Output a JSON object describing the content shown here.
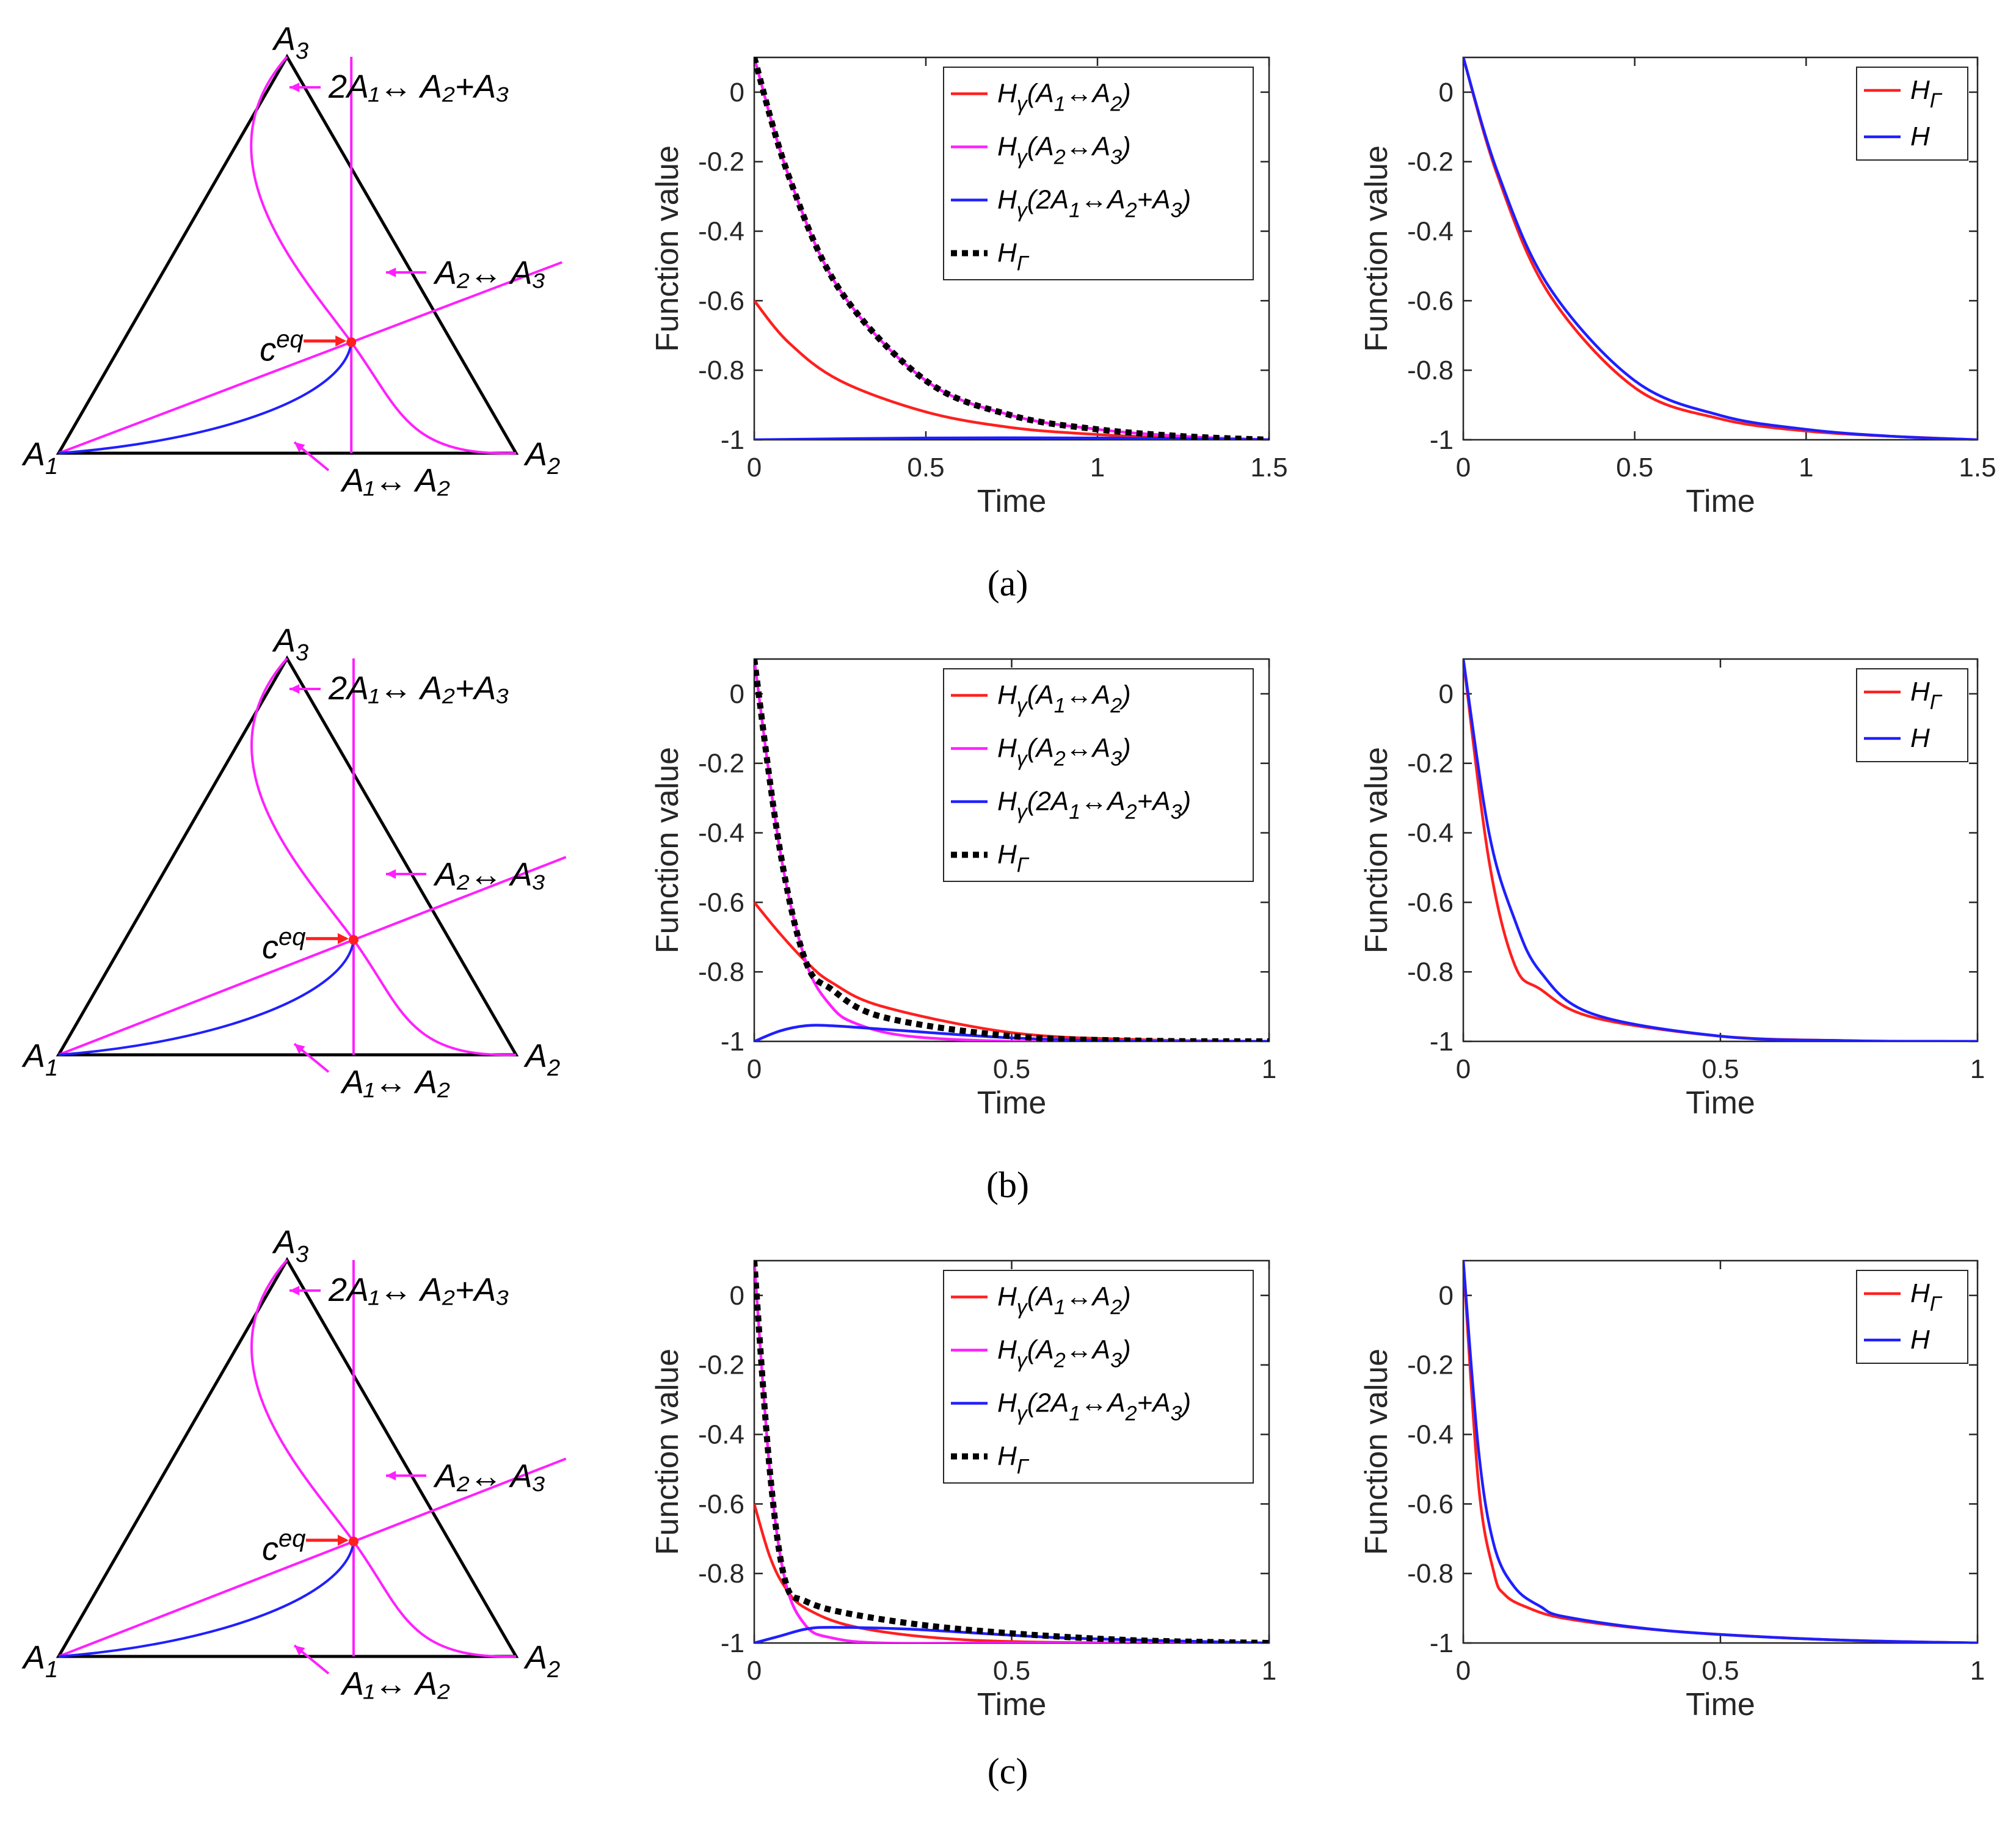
{
  "colors": {
    "red": "#ff1f1f",
    "magenta": "#ff1fff",
    "blue": "#1f1fff",
    "black": "#000000"
  },
  "panels": [
    {
      "caption": "(a)",
      "caption_letter": "a",
      "ceq": [
        0.5,
        0.28
      ]
    },
    {
      "caption": "(b)",
      "caption_letter": "b",
      "ceq": [
        0.5,
        0.29
      ]
    },
    {
      "caption": "(c)",
      "caption_letter": "c",
      "ceq": [
        0.5,
        0.29
      ]
    }
  ],
  "triangle": {
    "vertices": {
      "A1": "A",
      "A1_sub": "1",
      "A2": "A",
      "A2_sub": "2",
      "A3": "A",
      "A3_sub": "3"
    },
    "ceq_label": "c",
    "ceq_sup": "eq",
    "reaction_labels": [
      "2A₁↔ A₂+A₃",
      "A₂↔ A₃",
      "A₁↔ A₂"
    ]
  },
  "chart_data": [
    {
      "type": "line",
      "panel": "a-middle",
      "xlabel": "Time",
      "ylabel": "Function value",
      "xlim": [
        0,
        1.5
      ],
      "ylim": [
        -1,
        0.1
      ],
      "xticks": [
        "0",
        "0.5",
        "1",
        "1.5"
      ],
      "yticks": [
        "0",
        "-0.2",
        "-0.4",
        "-0.6",
        "-0.8",
        "-1"
      ],
      "legend": [
        "Hγ(A1↔A2)",
        "Hγ(A2↔A3)",
        "Hγ(2A1↔A2+A3)",
        "HΓ"
      ],
      "series": [
        {
          "name": "Hγ(A1↔A2)",
          "color": "#ff1f1f",
          "x": [
            0,
            0.1,
            0.25,
            0.5,
            0.75,
            1,
            1.25,
            1.5
          ],
          "y": [
            -0.6,
            -0.72,
            -0.83,
            -0.92,
            -0.965,
            -0.985,
            -0.995,
            -1
          ]
        },
        {
          "name": "Hγ(A2↔A3)",
          "color": "#ff1fff",
          "x": [
            0,
            0.1,
            0.25,
            0.5,
            0.75,
            1,
            1.25,
            1.5
          ],
          "y": [
            0.1,
            -0.24,
            -0.57,
            -0.83,
            -0.93,
            -0.97,
            -0.99,
            -1
          ]
        },
        {
          "name": "Hγ(2A1↔A2+A3)",
          "color": "#1f1fff",
          "x": [
            0,
            0.5,
            1,
            1.5
          ],
          "y": [
            -1,
            -0.995,
            -0.995,
            -1
          ]
        },
        {
          "name": "HΓ",
          "color": "#000000",
          "dashed": true,
          "x": [
            0,
            0.1,
            0.25,
            0.5,
            0.75,
            1,
            1.25,
            1.5
          ],
          "y": [
            0.1,
            -0.24,
            -0.57,
            -0.83,
            -0.93,
            -0.97,
            -0.99,
            -1
          ]
        }
      ]
    },
    {
      "type": "line",
      "panel": "a-right",
      "xlabel": "Time",
      "ylabel": "Function value",
      "xlim": [
        0,
        1.5
      ],
      "ylim": [
        -1,
        0.1
      ],
      "xticks": [
        "0",
        "0.5",
        "1",
        "1.5"
      ],
      "yticks": [
        "0",
        "-0.2",
        "-0.4",
        "-0.6",
        "-0.8",
        "-1"
      ],
      "legend": [
        "HΓ",
        "H"
      ],
      "series": [
        {
          "name": "HΓ",
          "color": "#ff1f1f",
          "x": [
            0,
            0.1,
            0.25,
            0.5,
            0.75,
            1,
            1.25,
            1.5
          ],
          "y": [
            0.1,
            -0.24,
            -0.58,
            -0.85,
            -0.94,
            -0.975,
            -0.99,
            -1
          ]
        },
        {
          "name": "H",
          "color": "#1f1fff",
          "x": [
            0,
            0.1,
            0.25,
            0.5,
            0.75,
            1,
            1.25,
            1.5
          ],
          "y": [
            0.1,
            -0.23,
            -0.56,
            -0.83,
            -0.93,
            -0.97,
            -0.99,
            -1
          ]
        }
      ]
    },
    {
      "type": "line",
      "panel": "b-middle",
      "xlabel": "Time",
      "ylabel": "Function value",
      "xlim": [
        0,
        1
      ],
      "ylim": [
        -1,
        0.1
      ],
      "xticks": [
        "0",
        "0.5",
        "1"
      ],
      "yticks": [
        "0",
        "-0.2",
        "-0.4",
        "-0.6",
        "-0.8",
        "-1"
      ],
      "legend": [
        "Hγ(A1↔A2)",
        "Hγ(A2↔A3)",
        "Hγ(2A1↔A2+A3)",
        "HΓ"
      ],
      "series": [
        {
          "name": "Hγ(A1↔A2)",
          "color": "#ff1f1f",
          "x": [
            0,
            0.05,
            0.1,
            0.15,
            0.25,
            0.5,
            0.75,
            1
          ],
          "y": [
            -0.6,
            -0.69,
            -0.77,
            -0.83,
            -0.9,
            -0.975,
            -0.995,
            -1
          ]
        },
        {
          "name": "Hγ(A2↔A3)",
          "color": "#ff1fff",
          "x": [
            0,
            0.05,
            0.1,
            0.15,
            0.2,
            0.3,
            0.5,
            0.75,
            1
          ],
          "y": [
            0.1,
            -0.45,
            -0.77,
            -0.9,
            -0.95,
            -0.985,
            -1,
            -1,
            -1
          ]
        },
        {
          "name": "Hγ(2A1↔A2+A3)",
          "color": "#1f1fff",
          "x": [
            0,
            0.05,
            0.1,
            0.15,
            0.25,
            0.5,
            0.75,
            1
          ],
          "y": [
            -1,
            -0.97,
            -0.955,
            -0.955,
            -0.965,
            -0.99,
            -1,
            -1
          ]
        },
        {
          "name": "HΓ",
          "color": "#000000",
          "dashed": true,
          "x": [
            0,
            0.05,
            0.1,
            0.15,
            0.25,
            0.5,
            0.75,
            1
          ],
          "y": [
            0.1,
            -0.45,
            -0.77,
            -0.85,
            -0.93,
            -0.985,
            -0.998,
            -1
          ]
        }
      ]
    },
    {
      "type": "line",
      "panel": "b-right",
      "xlabel": "Time",
      "ylabel": "Function value",
      "xlim": [
        0,
        1
      ],
      "ylim": [
        -1,
        0.1
      ],
      "xticks": [
        "0",
        "0.5",
        "1"
      ],
      "yticks": [
        "0",
        "-0.2",
        "-0.4",
        "-0.6",
        "-0.8",
        "-1"
      ],
      "legend": [
        "HΓ",
        "H"
      ],
      "series": [
        {
          "name": "HΓ",
          "color": "#ff1f1f",
          "x": [
            0,
            0.05,
            0.1,
            0.15,
            0.25,
            0.5,
            0.75,
            1
          ],
          "y": [
            0.1,
            -0.48,
            -0.78,
            -0.85,
            -0.93,
            -0.985,
            -0.998,
            -1
          ]
        },
        {
          "name": "H",
          "color": "#1f1fff",
          "x": [
            0,
            0.05,
            0.1,
            0.15,
            0.25,
            0.5,
            0.75,
            1
          ],
          "y": [
            0.1,
            -0.4,
            -0.65,
            -0.8,
            -0.92,
            -0.985,
            -0.998,
            -1
          ]
        }
      ]
    },
    {
      "type": "line",
      "panel": "c-middle",
      "xlabel": "Time",
      "ylabel": "Function value",
      "xlim": [
        0,
        1
      ],
      "ylim": [
        -1,
        0.1
      ],
      "xticks": [
        "0",
        "0.5",
        "1"
      ],
      "yticks": [
        "0",
        "-0.2",
        "-0.4",
        "-0.6",
        "-0.8",
        "-1"
      ],
      "legend": [
        "Hγ(A1↔A2)",
        "Hγ(A2↔A3)",
        "Hγ(2A1↔A2+A3)",
        "HΓ"
      ],
      "series": [
        {
          "name": "Hγ(A1↔A2)",
          "color": "#ff1f1f",
          "x": [
            0,
            0.03,
            0.06,
            0.1,
            0.2,
            0.4,
            0.7,
            1
          ],
          "y": [
            -0.6,
            -0.75,
            -0.84,
            -0.9,
            -0.955,
            -0.99,
            -1,
            -1
          ]
        },
        {
          "name": "Hγ(A2↔A3)",
          "color": "#ff1fff",
          "x": [
            0,
            0.03,
            0.06,
            0.1,
            0.15,
            0.25,
            0.5,
            1
          ],
          "y": [
            0.1,
            -0.5,
            -0.82,
            -0.95,
            -0.985,
            -1,
            -1,
            -1
          ]
        },
        {
          "name": "Hγ(2A1↔A2+A3)",
          "color": "#1f1fff",
          "x": [
            0,
            0.05,
            0.1,
            0.15,
            0.3,
            0.6,
            1
          ],
          "y": [
            -1,
            -0.98,
            -0.96,
            -0.955,
            -0.96,
            -0.985,
            -1
          ]
        },
        {
          "name": "HΓ",
          "color": "#000000",
          "dashed": true,
          "x": [
            0,
            0.03,
            0.06,
            0.1,
            0.2,
            0.4,
            0.7,
            1
          ],
          "y": [
            0.1,
            -0.5,
            -0.82,
            -0.88,
            -0.92,
            -0.96,
            -0.99,
            -1
          ]
        }
      ]
    },
    {
      "type": "line",
      "panel": "c-right",
      "xlabel": "Time",
      "ylabel": "Function value",
      "xlim": [
        0,
        1
      ],
      "ylim": [
        -1,
        0.1
      ],
      "xticks": [
        "0",
        "0.5",
        "1"
      ],
      "yticks": [
        "0",
        "-0.2",
        "-0.4",
        "-0.6",
        "-0.8",
        "-1"
      ],
      "legend": [
        "HΓ",
        "H"
      ],
      "series": [
        {
          "name": "HΓ",
          "color": "#ff1f1f",
          "x": [
            0,
            0.03,
            0.06,
            0.08,
            0.12,
            0.2,
            0.4,
            0.7,
            1
          ],
          "y": [
            0.1,
            -0.55,
            -0.8,
            -0.86,
            -0.895,
            -0.93,
            -0.965,
            -0.99,
            -1
          ]
        },
        {
          "name": "H",
          "color": "#1f1fff",
          "x": [
            0,
            0.03,
            0.06,
            0.1,
            0.15,
            0.2,
            0.4,
            0.7,
            1
          ],
          "y": [
            0.1,
            -0.45,
            -0.72,
            -0.84,
            -0.895,
            -0.925,
            -0.965,
            -0.99,
            -1
          ]
        }
      ]
    }
  ]
}
